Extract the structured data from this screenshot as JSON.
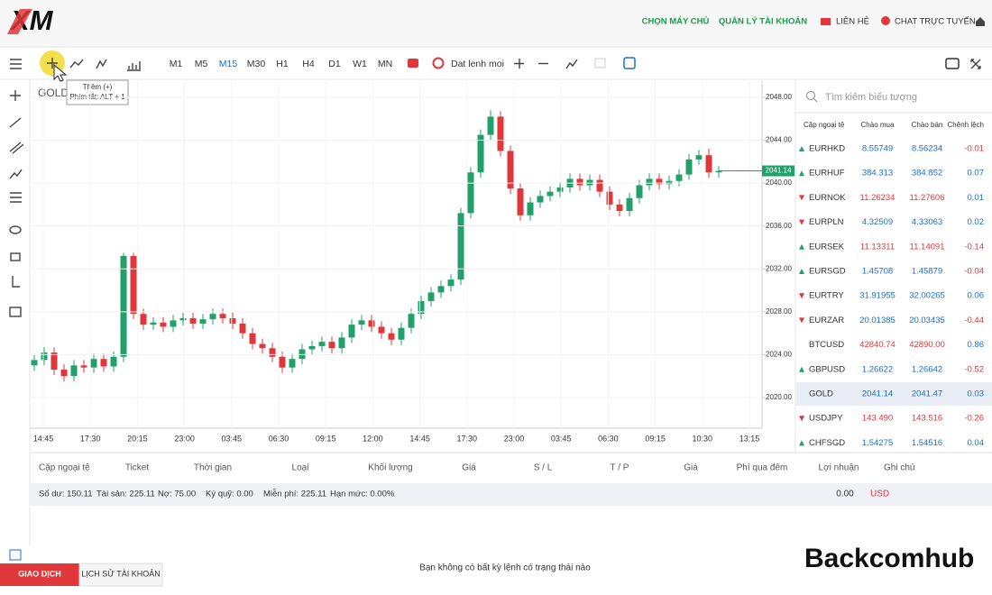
{
  "header": {
    "logo": "XM",
    "nav": [
      "CHỌN MÁY CHỦ",
      "QUẢN LÝ TÀI KHOẢN",
      "LIÊN HỆ",
      "CHAT TRỰC TUYẾN"
    ]
  },
  "toolbar": {
    "timeframes": [
      "M1",
      "M5",
      "M15",
      "M30",
      "H1",
      "H4",
      "D1",
      "W1",
      "MN"
    ],
    "active": 2,
    "order_button": "Dat lenh moi",
    "tooltip": {
      "title": "Thêm (+)",
      "shortcut": "Phím tắt: ALT + 1"
    }
  },
  "chart": {
    "symbol": "GOLD",
    "up_color": "#22a06b",
    "down_color": "#e0373a",
    "ylim": [
      2017.14,
      2049.51
    ],
    "yticks": [
      {
        "value": 2048,
        "label": "2048.00"
      },
      {
        "value": 2044,
        "label": "2044.00"
      },
      {
        "value": 2040,
        "label": "2040.00"
      },
      {
        "value": 2036,
        "label": "2036.00"
      },
      {
        "value": 2032,
        "label": "2032.00"
      },
      {
        "value": 2028,
        "label": "2028.00"
      },
      {
        "value": 2024,
        "label": "2024.00"
      },
      {
        "value": 2020,
        "label": "2020.00"
      }
    ],
    "times": [
      "14:45",
      "17:30",
      "20:15",
      "23:00",
      "03:45",
      "06:30",
      "09:15",
      "12:00",
      "14:45",
      "17:30",
      "23:00",
      "03:45",
      "06:30",
      "09:15",
      "10:30",
      "13:15"
    ],
    "opens": [
      2023.0,
      2023.5,
      2024.2,
      2022.6,
      2022.0,
      2023.0,
      2022.8,
      2023.6,
      2022.9,
      2023.8,
      2033.2,
      2027.8,
      2026.8,
      2027.0,
      2026.6,
      2027.2,
      2027.4,
      2026.9,
      2027.3,
      2027.8,
      2027.4,
      2026.9,
      2026.0,
      2025.0,
      2024.6,
      2023.8,
      2022.8,
      2023.6,
      2024.5,
      2024.8,
      2025.2,
      2024.6,
      2025.6,
      2026.8,
      2027.2,
      2026.6,
      2026.0,
      2025.4,
      2026.5,
      2027.8,
      2029.0,
      2029.8,
      2030.4,
      2031.0,
      2037.2,
      2041.0,
      2044.5,
      2046.2,
      2043.0,
      2039.5,
      2037.0,
      2038.2,
      2038.8,
      2039.2,
      2039.6,
      2040.4,
      2039.8,
      2040.3,
      2039.2,
      2038.0,
      2037.4,
      2038.6,
      2039.8,
      2040.4,
      2039.9,
      2040.2,
      2040.8,
      2042.2,
      2042.6,
      2041.0
    ],
    "highs": [
      2024.0,
      2024.7,
      2024.7,
      2023.1,
      2023.5,
      2023.5,
      2024.1,
      2024.1,
      2024.3,
      2033.5,
      2033.5,
      2028.3,
      2027.5,
      2027.5,
      2027.7,
      2027.9,
      2027.9,
      2027.8,
      2028.3,
      2028.3,
      2027.9,
      2027.4,
      2026.5,
      2025.5,
      2025.1,
      2024.3,
      2024.1,
      2025.0,
      2025.3,
      2025.7,
      2025.7,
      2026.1,
      2027.3,
      2027.7,
      2027.7,
      2027.1,
      2026.5,
      2027.0,
      2028.3,
      2029.5,
      2030.3,
      2030.9,
      2031.5,
      2037.7,
      2041.5,
      2045.0,
      2046.8,
      2046.7,
      2043.5,
      2040.0,
      2038.7,
      2039.3,
      2039.7,
      2040.1,
      2040.9,
      2040.9,
      2040.8,
      2040.8,
      2039.7,
      2038.5,
      2039.1,
      2040.3,
      2040.9,
      2040.9,
      2040.7,
      2041.3,
      2042.7,
      2043.1,
      2043.2,
      2041.6
    ],
    "lows": [
      2022.5,
      2023.0,
      2022.1,
      2021.5,
      2021.5,
      2022.3,
      2022.3,
      2022.4,
      2022.4,
      2023.3,
      2027.3,
      2026.3,
      2026.3,
      2026.1,
      2026.1,
      2026.7,
      2026.4,
      2026.4,
      2026.8,
      2026.9,
      2026.4,
      2025.5,
      2024.5,
      2024.1,
      2023.3,
      2022.3,
      2022.3,
      2023.1,
      2024.0,
      2024.3,
      2024.1,
      2024.1,
      2025.1,
      2026.3,
      2026.1,
      2025.5,
      2024.9,
      2024.9,
      2026.0,
      2027.3,
      2028.5,
      2029.3,
      2029.9,
      2030.5,
      2036.7,
      2040.5,
      2044.0,
      2042.5,
      2039.0,
      2036.5,
      2036.5,
      2037.7,
      2038.3,
      2038.7,
      2039.1,
      2039.3,
      2039.3,
      2038.7,
      2037.5,
      2036.9,
      2036.9,
      2038.1,
      2039.3,
      2039.4,
      2039.4,
      2039.7,
      2040.3,
      2041.7,
      2040.5,
      2040.5
    ],
    "closes": [
      2023.5,
      2024.2,
      2022.6,
      2022.0,
      2023.0,
      2022.8,
      2023.6,
      2022.9,
      2023.8,
      2033.2,
      2027.8,
      2026.8,
      2027.0,
      2026.6,
      2027.2,
      2027.4,
      2026.9,
      2027.3,
      2027.8,
      2027.4,
      2026.9,
      2026.0,
      2025.0,
      2024.6,
      2023.8,
      2022.8,
      2023.6,
      2024.5,
      2024.8,
      2025.2,
      2024.6,
      2025.6,
      2026.8,
      2027.2,
      2026.6,
      2026.0,
      2025.4,
      2026.5,
      2027.8,
      2029.0,
      2029.8,
      2030.4,
      2031.0,
      2037.2,
      2041.0,
      2044.5,
      2046.2,
      2043.0,
      2039.5,
      2037.0,
      2038.2,
      2038.8,
      2039.2,
      2039.6,
      2040.4,
      2039.8,
      2040.3,
      2039.2,
      2038.0,
      2037.4,
      2038.6,
      2039.8,
      2040.4,
      2039.9,
      2040.2,
      2040.8,
      2042.2,
      2042.6,
      2041.0,
      2041.14
    ]
  },
  "watchlist": {
    "search_placeholder": "Tìm kiếm biểu tượng",
    "columns": [
      "Cặp ngoại tệ",
      "Chào mua",
      "Chào bán",
      "Chênh lệch"
    ],
    "highlight": 10,
    "rows": [
      {
        "symbol": "EURHKD",
        "dir": "up",
        "color": "#1a6fd1",
        "bid": "8.55749",
        "ask": "8.56234",
        "spread": "-0.01"
      },
      {
        "symbol": "EURHUF",
        "dir": "up",
        "color": "#1a6fd1",
        "bid": "384.313",
        "ask": "384.852",
        "spread": "0.07"
      },
      {
        "symbol": "EURNOK",
        "dir": "down",
        "color": "#e0373a",
        "bid": "11.26234",
        "ask": "11.27606",
        "spread": "0.01"
      },
      {
        "symbol": "EURPLN",
        "dir": "down",
        "color": "#1a6fd1",
        "bid": "4.32509",
        "ask": "4.33063",
        "spread": "0.02"
      },
      {
        "symbol": "EURSEK",
        "dir": "up",
        "color": "#e0373a",
        "bid": "11.13311",
        "ask": "11.14091",
        "spread": "-0.14"
      },
      {
        "symbol": "EURSGD",
        "dir": "up",
        "color": "#1a6fd1",
        "bid": "1.45708",
        "ask": "1.45879",
        "spread": "-0.04"
      },
      {
        "symbol": "EURTRY",
        "dir": "down",
        "color": "#1a6fd1",
        "bid": "31.91955",
        "ask": "32.00265",
        "spread": "0.06"
      },
      {
        "symbol": "EURZAR",
        "dir": "down",
        "color": "#1a6fd1",
        "bid": "20.01385",
        "ask": "20.03435",
        "spread": "-0.44"
      },
      {
        "symbol": "BTCUSD",
        "dir": "none",
        "color": "#e0373a",
        "bid": "42840.74",
        "ask": "42890.00",
        "spread": "0.86"
      },
      {
        "symbol": "GBPUSD",
        "dir": "up",
        "color": "#1a6fd1",
        "bid": "1.26622",
        "ask": "1.26642",
        "spread": "-0.52"
      },
      {
        "symbol": "GOLD",
        "dir": "none",
        "color": "#1a6fd1",
        "bid": "2041.14",
        "ask": "2041.47",
        "spread": "0.03"
      },
      {
        "symbol": "USDJPY",
        "dir": "down",
        "color": "#e0373a",
        "bid": "143.490",
        "ask": "143.516",
        "spread": "-0.26"
      },
      {
        "symbol": "CHFSGD",
        "dir": "up",
        "color": "#1a6fd1",
        "bid": "1.54275",
        "ask": "1.54516",
        "spread": "0.04"
      }
    ]
  },
  "orders": {
    "columns": [
      "Cặp ngoại tệ",
      "Ticket",
      "Thời gian",
      "Loại",
      "Khối lượng",
      "Giá",
      "S / L",
      "T / P",
      "Giá",
      "Phí qua đêm",
      "Lợi nhuận",
      "Ghi chú"
    ],
    "summary": [
      "Số dư: 150.11",
      "Tài sản: 225.11",
      "Nợ: 75.00",
      "Ký quỹ: 0.00",
      "Miễn phí: 225.11",
      "Hạn mức: 0.00%"
    ],
    "profit": "0.00",
    "currency": "USD",
    "empty_message": "Bạn không có bất kỳ lệnh có trạng thái nào"
  },
  "tabs": [
    "GIAO DỊCH",
    "LỊCH SỬ TÀI KHOẢN"
  ],
  "watermark": "Backcomhub"
}
